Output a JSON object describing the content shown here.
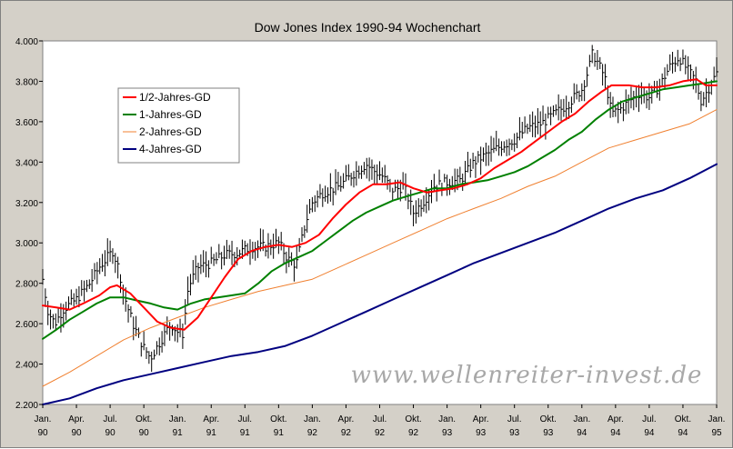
{
  "chart_data": {
    "type": "line",
    "title": "Dow Jones Index 1990-94 Wochenchart",
    "xlabel": "",
    "ylabel": "",
    "xlim": [
      1990.0,
      1995.0
    ],
    "ylim": [
      2200,
      4000
    ],
    "y_ticks": [
      2200,
      2400,
      2600,
      2800,
      3000,
      3200,
      3400,
      3600,
      3800,
      4000
    ],
    "y_tick_labels": [
      "2.200",
      "2.400",
      "2.600",
      "2.800",
      "3.000",
      "3.200",
      "3.400",
      "3.600",
      "3.800",
      "4.000"
    ],
    "x_ticks": [
      {
        "t": 1990.0,
        "label": "Jan. 90"
      },
      {
        "t": 1990.25,
        "label": "Apr. 90"
      },
      {
        "t": 1990.5,
        "label": "Jul. 90"
      },
      {
        "t": 1990.75,
        "label": "Okt. 90"
      },
      {
        "t": 1991.0,
        "label": "Jan. 91"
      },
      {
        "t": 1991.25,
        "label": "Apr. 91"
      },
      {
        "t": 1991.5,
        "label": "Jul. 91"
      },
      {
        "t": 1991.75,
        "label": "Okt. 91"
      },
      {
        "t": 1992.0,
        "label": "Jan. 92"
      },
      {
        "t": 1992.25,
        "label": "Apr. 92"
      },
      {
        "t": 1992.5,
        "label": "Jul. 92"
      },
      {
        "t": 1992.75,
        "label": "Okt. 92"
      },
      {
        "t": 1993.0,
        "label": "Jan. 93"
      },
      {
        "t": 1993.25,
        "label": "Apr. 93"
      },
      {
        "t": 1993.5,
        "label": "Jul. 93"
      },
      {
        "t": 1993.75,
        "label": "Okt. 93"
      },
      {
        "t": 1994.0,
        "label": "Jan. 94"
      },
      {
        "t": 1994.25,
        "label": "Apr. 94"
      },
      {
        "t": 1994.5,
        "label": "Jul. 94"
      },
      {
        "t": 1994.75,
        "label": "Okt. 94"
      },
      {
        "t": 1995.0,
        "label": "Jan. 95"
      }
    ],
    "grid": false,
    "legend_position": "top-left",
    "watermark": "www.wellenreiter-invest.de",
    "bars": {
      "name": "Dow Jones Index",
      "color": "#000000",
      "anchors": [
        [
          1990.0,
          2820
        ],
        [
          1990.04,
          2660
        ],
        [
          1990.09,
          2600
        ],
        [
          1990.15,
          2670
        ],
        [
          1990.25,
          2720
        ],
        [
          1990.35,
          2800
        ],
        [
          1990.42,
          2880
        ],
        [
          1990.47,
          2920
        ],
        [
          1990.52,
          2960
        ],
        [
          1990.56,
          2880
        ],
        [
          1990.62,
          2700
        ],
        [
          1990.68,
          2580
        ],
        [
          1990.75,
          2480
        ],
        [
          1990.8,
          2430
        ],
        [
          1990.87,
          2510
        ],
        [
          1990.95,
          2600
        ],
        [
          1991.0,
          2560
        ],
        [
          1991.04,
          2550
        ],
        [
          1991.08,
          2780
        ],
        [
          1991.15,
          2880
        ],
        [
          1991.25,
          2900
        ],
        [
          1991.35,
          2940
        ],
        [
          1991.45,
          2950
        ],
        [
          1991.55,
          2980
        ],
        [
          1991.65,
          2980
        ],
        [
          1991.75,
          3000
        ],
        [
          1991.82,
          2920
        ],
        [
          1991.88,
          2890
        ],
        [
          1991.95,
          3100
        ],
        [
          1992.0,
          3200
        ],
        [
          1992.08,
          3250
        ],
        [
          1992.2,
          3280
        ],
        [
          1992.3,
          3340
        ],
        [
          1992.4,
          3390
        ],
        [
          1992.45,
          3360
        ],
        [
          1992.52,
          3330
        ],
        [
          1992.6,
          3260
        ],
        [
          1992.68,
          3280
        ],
        [
          1992.75,
          3150
        ],
        [
          1992.82,
          3200
        ],
        [
          1992.9,
          3280
        ],
        [
          1993.0,
          3300
        ],
        [
          1993.1,
          3310
        ],
        [
          1993.2,
          3400
        ],
        [
          1993.3,
          3440
        ],
        [
          1993.4,
          3480
        ],
        [
          1993.5,
          3510
        ],
        [
          1993.6,
          3570
        ],
        [
          1993.7,
          3590
        ],
        [
          1993.8,
          3640
        ],
        [
          1993.9,
          3690
        ],
        [
          1994.0,
          3760
        ],
        [
          1994.05,
          3860
        ],
        [
          1994.08,
          3940
        ],
        [
          1994.12,
          3890
        ],
        [
          1994.17,
          3820
        ],
        [
          1994.22,
          3640
        ],
        [
          1994.28,
          3660
        ],
        [
          1994.35,
          3700
        ],
        [
          1994.42,
          3740
        ],
        [
          1994.5,
          3720
        ],
        [
          1994.58,
          3780
        ],
        [
          1994.65,
          3870
        ],
        [
          1994.72,
          3920
        ],
        [
          1994.78,
          3860
        ],
        [
          1994.85,
          3800
        ],
        [
          1994.88,
          3700
        ],
        [
          1994.92,
          3740
        ],
        [
          1995.0,
          3840
        ]
      ]
    },
    "series": [
      {
        "name": "1/2-Jahres-GD",
        "color": "#ff0000",
        "width": 2,
        "points": [
          [
            1990.0,
            2690
          ],
          [
            1990.1,
            2680
          ],
          [
            1990.2,
            2670
          ],
          [
            1990.3,
            2700
          ],
          [
            1990.42,
            2740
          ],
          [
            1990.5,
            2780
          ],
          [
            1990.55,
            2790
          ],
          [
            1990.65,
            2750
          ],
          [
            1990.75,
            2680
          ],
          [
            1990.85,
            2610
          ],
          [
            1990.95,
            2580
          ],
          [
            1991.05,
            2570
          ],
          [
            1991.15,
            2630
          ],
          [
            1991.25,
            2730
          ],
          [
            1991.35,
            2830
          ],
          [
            1991.45,
            2920
          ],
          [
            1991.55,
            2960
          ],
          [
            1991.65,
            2980
          ],
          [
            1991.75,
            2990
          ],
          [
            1991.85,
            2980
          ],
          [
            1991.95,
            3000
          ],
          [
            1992.05,
            3040
          ],
          [
            1992.15,
            3120
          ],
          [
            1992.25,
            3190
          ],
          [
            1992.35,
            3250
          ],
          [
            1992.45,
            3290
          ],
          [
            1992.55,
            3290
          ],
          [
            1992.65,
            3300
          ],
          [
            1992.75,
            3270
          ],
          [
            1992.85,
            3250
          ],
          [
            1992.95,
            3260
          ],
          [
            1993.05,
            3270
          ],
          [
            1993.15,
            3290
          ],
          [
            1993.25,
            3320
          ],
          [
            1993.35,
            3370
          ],
          [
            1993.45,
            3410
          ],
          [
            1993.55,
            3450
          ],
          [
            1993.65,
            3500
          ],
          [
            1993.75,
            3550
          ],
          [
            1993.85,
            3600
          ],
          [
            1993.95,
            3640
          ],
          [
            1994.05,
            3700
          ],
          [
            1994.15,
            3750
          ],
          [
            1994.22,
            3780
          ],
          [
            1994.35,
            3780
          ],
          [
            1994.45,
            3770
          ],
          [
            1994.55,
            3770
          ],
          [
            1994.65,
            3780
          ],
          [
            1994.75,
            3800
          ],
          [
            1994.85,
            3810
          ],
          [
            1994.92,
            3780
          ],
          [
            1995.0,
            3780
          ]
        ]
      },
      {
        "name": "1-Jahres-GD",
        "color": "#008000",
        "width": 2,
        "points": [
          [
            1990.0,
            2525
          ],
          [
            1990.1,
            2570
          ],
          [
            1990.2,
            2620
          ],
          [
            1990.3,
            2660
          ],
          [
            1990.4,
            2700
          ],
          [
            1990.5,
            2730
          ],
          [
            1990.6,
            2730
          ],
          [
            1990.7,
            2715
          ],
          [
            1990.8,
            2700
          ],
          [
            1990.9,
            2680
          ],
          [
            1991.0,
            2670
          ],
          [
            1991.1,
            2700
          ],
          [
            1991.2,
            2720
          ],
          [
            1991.3,
            2730
          ],
          [
            1991.4,
            2740
          ],
          [
            1991.5,
            2750
          ],
          [
            1991.6,
            2800
          ],
          [
            1991.7,
            2860
          ],
          [
            1991.8,
            2900
          ],
          [
            1991.9,
            2930
          ],
          [
            1992.0,
            2960
          ],
          [
            1992.1,
            3010
          ],
          [
            1992.2,
            3060
          ],
          [
            1992.3,
            3110
          ],
          [
            1992.4,
            3150
          ],
          [
            1992.5,
            3180
          ],
          [
            1992.6,
            3210
          ],
          [
            1992.7,
            3230
          ],
          [
            1992.8,
            3250
          ],
          [
            1992.9,
            3270
          ],
          [
            1993.0,
            3270
          ],
          [
            1993.1,
            3290
          ],
          [
            1993.2,
            3300
          ],
          [
            1993.3,
            3310
          ],
          [
            1993.4,
            3330
          ],
          [
            1993.5,
            3350
          ],
          [
            1993.6,
            3380
          ],
          [
            1993.7,
            3420
          ],
          [
            1993.8,
            3460
          ],
          [
            1993.9,
            3510
          ],
          [
            1994.0,
            3550
          ],
          [
            1994.1,
            3610
          ],
          [
            1994.2,
            3660
          ],
          [
            1994.3,
            3700
          ],
          [
            1994.4,
            3720
          ],
          [
            1994.5,
            3740
          ],
          [
            1994.6,
            3760
          ],
          [
            1994.7,
            3770
          ],
          [
            1994.8,
            3780
          ],
          [
            1994.9,
            3790
          ],
          [
            1995.0,
            3800
          ]
        ]
      },
      {
        "name": "2-Jahres-GD",
        "color": "#f08030",
        "width": 1,
        "points": [
          [
            1990.0,
            2290
          ],
          [
            1990.2,
            2360
          ],
          [
            1990.4,
            2440
          ],
          [
            1990.6,
            2520
          ],
          [
            1990.8,
            2580
          ],
          [
            1991.0,
            2630
          ],
          [
            1991.2,
            2680
          ],
          [
            1991.4,
            2720
          ],
          [
            1991.6,
            2760
          ],
          [
            1991.8,
            2790
          ],
          [
            1992.0,
            2820
          ],
          [
            1992.2,
            2880
          ],
          [
            1992.4,
            2940
          ],
          [
            1992.6,
            3000
          ],
          [
            1992.8,
            3060
          ],
          [
            1993.0,
            3120
          ],
          [
            1993.2,
            3170
          ],
          [
            1993.4,
            3220
          ],
          [
            1993.6,
            3280
          ],
          [
            1993.8,
            3330
          ],
          [
            1994.0,
            3400
          ],
          [
            1994.2,
            3470
          ],
          [
            1994.4,
            3510
          ],
          [
            1994.6,
            3550
          ],
          [
            1994.8,
            3590
          ],
          [
            1995.0,
            3660
          ]
        ]
      },
      {
        "name": "4-Jahres-GD",
        "color": "#000080",
        "width": 2,
        "points": [
          [
            1990.0,
            2180
          ],
          [
            1990.2,
            2230
          ],
          [
            1990.4,
            2280
          ],
          [
            1990.6,
            2320
          ],
          [
            1990.8,
            2350
          ],
          [
            1991.0,
            2380
          ],
          [
            1991.2,
            2410
          ],
          [
            1991.4,
            2440
          ],
          [
            1991.6,
            2460
          ],
          [
            1991.8,
            2490
          ],
          [
            1992.0,
            2540
          ],
          [
            1992.2,
            2600
          ],
          [
            1992.4,
            2660
          ],
          [
            1992.6,
            2720
          ],
          [
            1992.8,
            2780
          ],
          [
            1993.0,
            2840
          ],
          [
            1993.2,
            2900
          ],
          [
            1993.4,
            2950
          ],
          [
            1993.6,
            3000
          ],
          [
            1993.8,
            3050
          ],
          [
            1994.0,
            3110
          ],
          [
            1994.2,
            3170
          ],
          [
            1994.4,
            3220
          ],
          [
            1994.6,
            3260
          ],
          [
            1994.8,
            3320
          ],
          [
            1995.0,
            3390
          ]
        ]
      }
    ]
  }
}
